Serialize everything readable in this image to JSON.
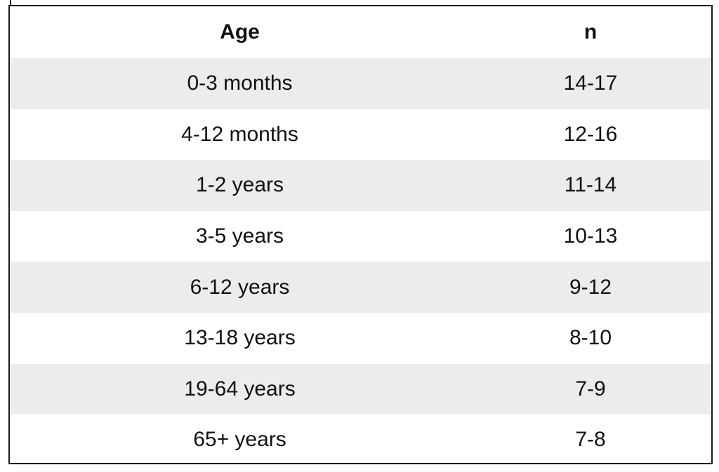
{
  "table": {
    "headers": {
      "age": "Age",
      "n": "n"
    },
    "rows": [
      {
        "age": "0-3 months",
        "n": "14-17"
      },
      {
        "age": "4-12 months",
        "n": "12-16"
      },
      {
        "age": "1-2 years",
        "n": "11-14"
      },
      {
        "age": "3-5 years",
        "n": "10-13"
      },
      {
        "age": "6-12 years",
        "n": "9-12"
      },
      {
        "age": "13-18 years",
        "n": "8-10"
      },
      {
        "age": "19-64 years",
        "n": "7-9"
      },
      {
        "age": "65+ years",
        "n": "7-8"
      }
    ],
    "shaded_row_color": "#ececec",
    "border_color": "#1a1a1a"
  }
}
